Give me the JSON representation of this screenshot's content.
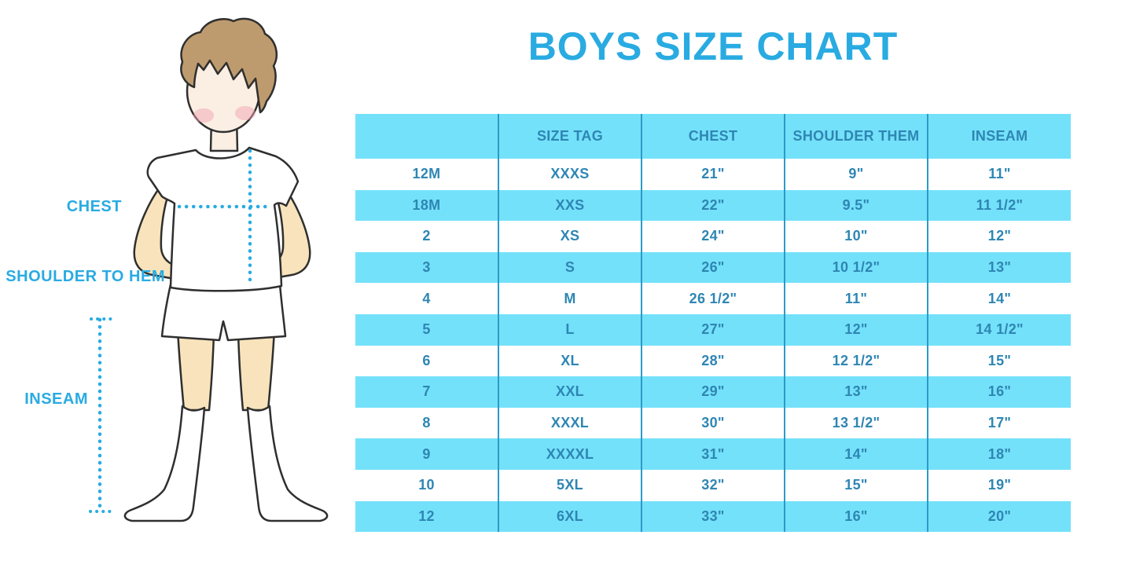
{
  "title": "BOYS SIZE CHART",
  "figure": {
    "description": "boy-measurement-illustration",
    "labels": {
      "chest": "CHEST",
      "shoulder_to_hem": "SHOULDER TO HEM",
      "inseam": "INSEAM"
    }
  },
  "chart_data": {
    "type": "table",
    "title": "BOYS SIZE CHART",
    "columns": [
      "",
      "SIZE TAG",
      "CHEST",
      "SHOULDER THEM",
      "INSEAM"
    ],
    "rows": [
      [
        "12M",
        "XXXS",
        "21\"",
        "9\"",
        "11\""
      ],
      [
        "18M",
        "XXS",
        "22\"",
        "9.5\"",
        "11 1/2\""
      ],
      [
        "2",
        "XS",
        "24\"",
        "10\"",
        "12\""
      ],
      [
        "3",
        "S",
        "26\"",
        "10 1/2\"",
        "13\""
      ],
      [
        "4",
        "M",
        "26 1/2\"",
        "11\"",
        "14\""
      ],
      [
        "5",
        "L",
        "27\"",
        "12\"",
        "14 1/2\""
      ],
      [
        "6",
        "XL",
        "28\"",
        "12 1/2\"",
        "15\""
      ],
      [
        "7",
        "XXL",
        "29\"",
        "13\"",
        "16\""
      ],
      [
        "8",
        "XXXL",
        "30\"",
        "13 1/2\"",
        "17\""
      ],
      [
        "9",
        "XXXXL",
        "31\"",
        "14\"",
        "18\""
      ],
      [
        "10",
        "5XL",
        "32\"",
        "15\"",
        "19\""
      ],
      [
        "12",
        "6XL",
        "33\"",
        "16\"",
        "20\""
      ]
    ],
    "layout": {
      "striped": true,
      "first_striped_row": "18M",
      "header_background": "#74E1FA",
      "column_dividers": true
    }
  },
  "colors": {
    "accent_blue": "#29ABE2",
    "row_cyan": "#74E1FA",
    "divider_blue": "#2A9BC9",
    "table_text_blue": "#2E86B3"
  }
}
